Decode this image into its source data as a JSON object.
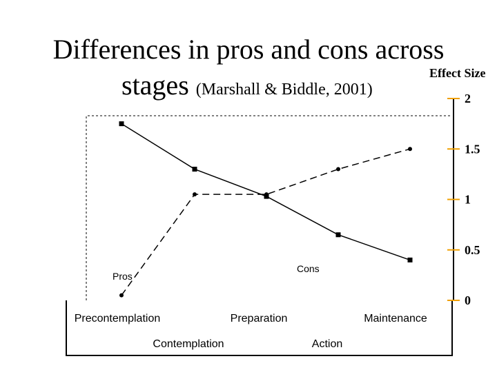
{
  "title": {
    "line1": "Differences in pros and cons across",
    "line2_main": "stages",
    "line2_sub": "(Marshall & Biddle, 2001)"
  },
  "axis_title": "Effect Size",
  "chart_data": {
    "type": "line",
    "categories": [
      "Precontemplation",
      "Contemplation",
      "Preparation",
      "Action",
      "Maintenance"
    ],
    "series": [
      {
        "name": "Pros",
        "values": [
          0.05,
          1.05,
          1.05,
          1.3,
          1.5
        ],
        "style": "dashed",
        "marker": "circle"
      },
      {
        "name": "Cons",
        "values": [
          1.75,
          1.3,
          1.03,
          0.65,
          0.4
        ],
        "style": "solid",
        "marker": "square"
      }
    ],
    "ylabel": "Effect Size",
    "yticks": [
      "0",
      "0.5",
      "1",
      "1.5",
      "2"
    ],
    "ylim": [
      0,
      2
    ],
    "grid": false,
    "axis_side": "right",
    "colors": {
      "line": "#000000",
      "tick": "#f0a000"
    }
  }
}
